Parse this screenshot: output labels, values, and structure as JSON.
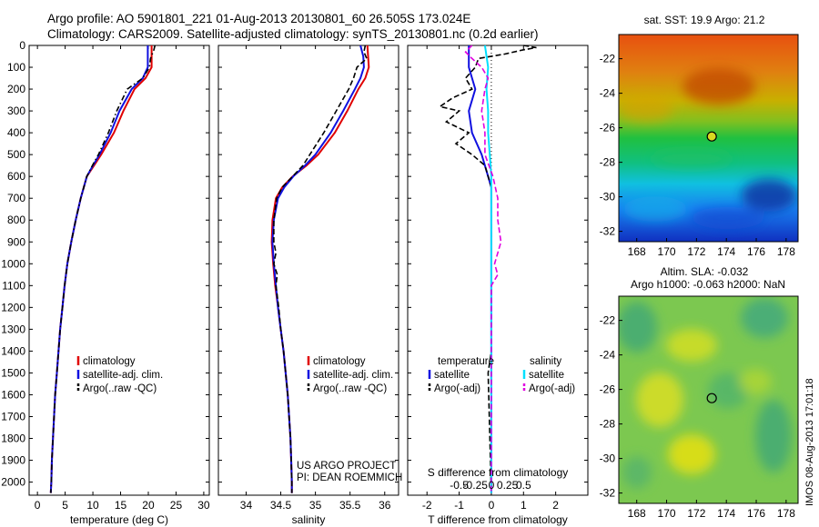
{
  "header": {
    "title_line1": "Argo profile: AO 5901801_221 01-Aug-2013 20130801_60 26.505S 173.024E",
    "title_line2": "Climatology: CARS2009. Satellite-adjusted climatology: synTS_20130801.nc (0.2d earlier)"
  },
  "colors": {
    "climatology": "#e00000",
    "satellite": "#1010e0",
    "argo": "#000000",
    "sat_salinity": "#00e0ff",
    "argo_salinity": "#e000e0"
  },
  "depth_axis": {
    "ticks": [
      0,
      100,
      200,
      300,
      400,
      500,
      600,
      700,
      800,
      900,
      1000,
      1100,
      1200,
      1300,
      1400,
      1500,
      1600,
      1700,
      1800,
      1900,
      2000
    ],
    "range": [
      0,
      2060
    ]
  },
  "annotations": {
    "project_line1": "US ARGO PROJECT",
    "project_line2": "PI: DEAN ROEMMICH",
    "stamp": "IMOS 08-Aug-2013 17:01:18"
  },
  "chart_data": [
    {
      "type": "line",
      "name": "temperature-profile",
      "xlabel": "temperature (deg C)",
      "ylim": [
        0,
        2060
      ],
      "xlim": [
        -1.5,
        31
      ],
      "xticks": [
        0,
        5,
        10,
        15,
        20,
        25,
        30
      ],
      "legend_position": "lower-center",
      "series": [
        {
          "name": "climatology",
          "style": "solid",
          "depth": [
            0,
            100,
            150,
            200,
            300,
            400,
            500,
            550,
            600,
            700,
            800,
            900,
            1000,
            1100,
            1200,
            1300,
            1400,
            1500,
            1600,
            1700,
            1800,
            1900,
            2000,
            2050
          ],
          "values": [
            20.6,
            20.6,
            19.5,
            17.5,
            15.5,
            13.8,
            11.5,
            10.2,
            8.9,
            7.8,
            6.9,
            6.1,
            5.4,
            4.9,
            4.5,
            4.1,
            3.8,
            3.5,
            3.2,
            3.0,
            2.8,
            2.6,
            2.5,
            2.4
          ]
        },
        {
          "name": "satellite-adj. clim.",
          "style": "solid",
          "depth": [
            0,
            100,
            150,
            200,
            300,
            400,
            500,
            550,
            600,
            700,
            800,
            900,
            1000,
            1100,
            1200,
            1300,
            1400,
            1500,
            1600,
            1700,
            1800,
            1900,
            2000,
            2050
          ],
          "values": [
            19.9,
            19.9,
            19.0,
            17.0,
            14.8,
            13.2,
            11.2,
            10.0,
            8.9,
            7.8,
            6.9,
            6.1,
            5.4,
            4.9,
            4.5,
            4.1,
            3.8,
            3.5,
            3.2,
            3.0,
            2.8,
            2.6,
            2.5,
            2.4
          ]
        },
        {
          "name": "Argo(..raw -QC)",
          "style": "dashdot",
          "depth": [
            0,
            20,
            60,
            100,
            150,
            200,
            300,
            400,
            500,
            550,
            600,
            700,
            800,
            900,
            1000,
            1100,
            1200,
            1300,
            1400,
            1500,
            1600,
            1700,
            1800,
            1900,
            2000,
            2050
          ],
          "values": [
            21.2,
            21.0,
            20.4,
            20.2,
            19.0,
            16.2,
            14.3,
            12.8,
            11.0,
            9.9,
            8.9,
            7.8,
            6.9,
            6.1,
            5.4,
            4.9,
            4.5,
            4.1,
            3.8,
            3.5,
            3.2,
            3.0,
            2.8,
            2.6,
            2.5,
            2.4
          ]
        }
      ]
    },
    {
      "type": "line",
      "name": "salinity-profile",
      "xlabel": "salinity",
      "ylim": [
        0,
        2060
      ],
      "xlim": [
        33.6,
        36.2
      ],
      "xticks": [
        34,
        34.5,
        35,
        35.5,
        36
      ],
      "legend_position": "lower-center",
      "series": [
        {
          "name": "climatology",
          "style": "solid",
          "depth": [
            0,
            50,
            100,
            150,
            200,
            300,
            400,
            500,
            550,
            600,
            650,
            700,
            800,
            900,
            1000,
            1100,
            1200,
            1300,
            1400,
            1500,
            1600,
            1700,
            1800,
            1900,
            2000,
            2050
          ],
          "values": [
            35.75,
            35.76,
            35.77,
            35.72,
            35.62,
            35.46,
            35.28,
            35.04,
            34.87,
            34.67,
            34.52,
            34.43,
            34.38,
            34.37,
            34.39,
            34.42,
            34.46,
            34.5,
            34.54,
            34.57,
            34.6,
            34.62,
            34.64,
            34.65,
            34.66,
            34.66
          ]
        },
        {
          "name": "satellite-adj. clim.",
          "style": "solid",
          "depth": [
            0,
            50,
            100,
            150,
            200,
            300,
            400,
            500,
            550,
            600,
            650,
            700,
            800,
            900,
            1000,
            1100,
            1200,
            1300,
            1400,
            1500,
            1600,
            1700,
            1800,
            1900,
            2000,
            2050
          ],
          "values": [
            35.65,
            35.69,
            35.7,
            35.65,
            35.57,
            35.4,
            35.22,
            35.0,
            34.85,
            34.68,
            34.55,
            34.46,
            34.4,
            34.38,
            34.4,
            34.43,
            34.46,
            34.5,
            34.54,
            34.57,
            34.6,
            34.62,
            34.64,
            34.65,
            34.66,
            34.66
          ]
        },
        {
          "name": "Argo(..raw -QC)",
          "style": "dashed",
          "depth": [
            0,
            30,
            60,
            100,
            150,
            200,
            300,
            400,
            500,
            550,
            600,
            650,
            700,
            800,
            900,
            950,
            1000,
            1050,
            1100,
            1200,
            1300,
            1400,
            1500,
            1600,
            1700,
            1800,
            1900,
            2000,
            2050
          ],
          "values": [
            35.72,
            35.7,
            35.74,
            35.6,
            35.55,
            35.48,
            35.3,
            35.12,
            34.92,
            34.82,
            34.67,
            34.52,
            34.44,
            34.4,
            34.4,
            34.43,
            34.4,
            34.45,
            34.43,
            34.47,
            34.5,
            34.54,
            34.57,
            34.6,
            34.62,
            34.64,
            34.65,
            34.66,
            34.66
          ]
        }
      ]
    },
    {
      "type": "line",
      "name": "difference-profile",
      "xlabel": "T difference from climatology",
      "xlabel_top": "S difference from climatology",
      "ylim": [
        0,
        2060
      ],
      "xlim": [
        -2.6,
        3.0
      ],
      "xticks": [
        -2,
        -1,
        0,
        1,
        2
      ],
      "xtick_labels": [
        "-2",
        "-1",
        "0",
        "1",
        "2"
      ],
      "top_ticks": [
        -1,
        -0.5,
        0,
        0.5,
        1
      ],
      "top_tick_labels": [
        "-0.5",
        "-0.25",
        "0",
        "0.25",
        "0.5"
      ],
      "legend_headers": [
        "temperature",
        "salinity"
      ],
      "legend_position": "lower-center",
      "series": [
        {
          "name": "satellite",
          "group": "temperature",
          "style": "solid",
          "depth": [
            0,
            100,
            200,
            300,
            400,
            500,
            600,
            650,
            700,
            800,
            1000,
            1500,
            2050
          ],
          "values": [
            -0.7,
            -0.7,
            -0.5,
            -0.7,
            -0.6,
            -0.3,
            -0.1,
            0,
            0,
            0,
            0,
            0,
            0
          ]
        },
        {
          "name": "Argo(-adj)",
          "group": "temperature",
          "style": "dashed",
          "depth": [
            0,
            10,
            20,
            40,
            60,
            100,
            150,
            200,
            240,
            280,
            300,
            350,
            400,
            450,
            500,
            550,
            600,
            650,
            700,
            800,
            1000,
            1400,
            1500,
            2050
          ],
          "values": [
            1.0,
            1.4,
            1.0,
            0.4,
            -0.4,
            -0.5,
            -0.8,
            -0.6,
            -1.2,
            -1.6,
            -1.0,
            -1.4,
            -0.7,
            -1.1,
            -0.6,
            -0.2,
            -0.1,
            0,
            0,
            0,
            0,
            0,
            -0.1,
            0
          ]
        },
        {
          "name": "satellite",
          "group": "salinity",
          "style": "solid",
          "depth": [
            0,
            100,
            200,
            300,
            400,
            500,
            600,
            700,
            800,
            1000,
            1500,
            2050
          ],
          "values": [
            -0.2,
            -0.1,
            -0.15,
            -0.1,
            -0.1,
            -0.05,
            0,
            0,
            0,
            0,
            0,
            0
          ]
        },
        {
          "name": "Argo(-adj)",
          "group": "salinity",
          "style": "dashed",
          "depth": [
            0,
            30,
            60,
            100,
            150,
            200,
            300,
            400,
            500,
            600,
            700,
            800,
            900,
            1000,
            1050,
            1100,
            1200,
            1500,
            2050
          ],
          "values": [
            -0.6,
            -0.8,
            -0.6,
            -0.3,
            -0.1,
            -0.2,
            -0.3,
            -0.2,
            -0.2,
            0.05,
            0.2,
            0.2,
            0.3,
            0.1,
            0.2,
            0.0,
            0.0,
            0.0,
            0.0
          ]
        }
      ]
    },
    {
      "type": "heatmap",
      "name": "sst-map",
      "title": "sat. SST: 19.9 Argo: 21.2",
      "xticks": [
        168,
        170,
        172,
        174,
        176,
        178
      ],
      "yticks": [
        -22,
        -24,
        -26,
        -28,
        -30,
        -32
      ],
      "xlim": [
        166.8,
        178.8
      ],
      "ylim": [
        -32.6,
        -20.6
      ],
      "marker": {
        "lon": 173.024,
        "lat": -26.505
      }
    },
    {
      "type": "heatmap",
      "name": "sla-map",
      "title_line1": "Altim. SLA: -0.032",
      "title_line2": "Argo h1000: -0.063 h2000: NaN",
      "xticks": [
        168,
        170,
        172,
        174,
        176,
        178
      ],
      "yticks": [
        -22,
        -24,
        -26,
        -28,
        -30,
        -32
      ],
      "xlim": [
        166.8,
        178.8
      ],
      "ylim": [
        -32.6,
        -20.6
      ],
      "marker": {
        "lon": 173.024,
        "lat": -26.505
      }
    }
  ]
}
